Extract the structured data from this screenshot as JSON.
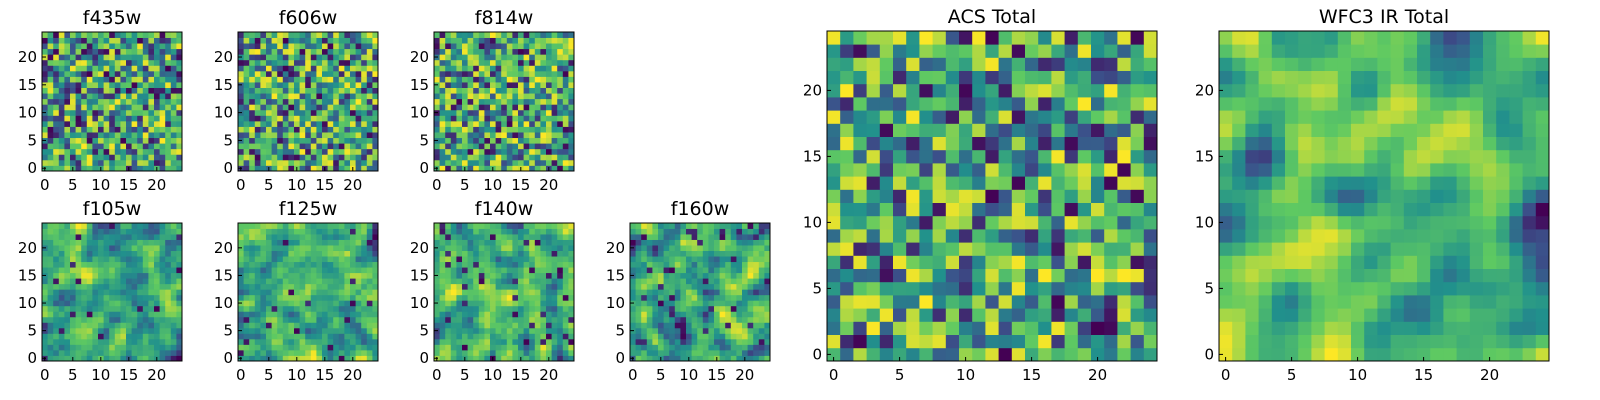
{
  "figure": {
    "description_note": "Grid of heatmap panels of 25x25 pixel images",
    "colormap": [
      "#440154",
      "#3b528b",
      "#21918c",
      "#5ec962",
      "#fde725"
    ]
  },
  "chart_data": [
    {
      "type": "heatmap",
      "title": "f435w",
      "grid_size": 25,
      "xlim": [
        0,
        24
      ],
      "ylim": [
        0,
        24
      ],
      "xticks": [
        0,
        5,
        10,
        15,
        20
      ],
      "yticks": [
        0,
        5,
        10,
        15,
        20
      ],
      "seed": 11,
      "smooth": 0,
      "low_bias": 0.05
    },
    {
      "type": "heatmap",
      "title": "f606w",
      "grid_size": 25,
      "xlim": [
        0,
        24
      ],
      "ylim": [
        0,
        24
      ],
      "xticks": [
        0,
        5,
        10,
        15,
        20
      ],
      "yticks": [
        0,
        5,
        10,
        15,
        20
      ],
      "seed": 23,
      "smooth": 0,
      "low_bias": 0.04
    },
    {
      "type": "heatmap",
      "title": "f814w",
      "grid_size": 25,
      "xlim": [
        0,
        24
      ],
      "ylim": [
        0,
        24
      ],
      "xticks": [
        0,
        5,
        10,
        15,
        20
      ],
      "yticks": [
        0,
        5,
        10,
        15,
        20
      ],
      "seed": 37,
      "smooth": 0,
      "low_bias": 0.03
    },
    {
      "type": "heatmap",
      "title": "f105w",
      "grid_size": 25,
      "xlim": [
        0,
        24
      ],
      "ylim": [
        0,
        24
      ],
      "xticks": [
        0,
        5,
        10,
        15,
        20
      ],
      "yticks": [
        0,
        5,
        10,
        15,
        20
      ],
      "seed": 41,
      "smooth": 1,
      "low_bias": 0.03
    },
    {
      "type": "heatmap",
      "title": "f125w",
      "grid_size": 25,
      "xlim": [
        0,
        24
      ],
      "ylim": [
        0,
        24
      ],
      "xticks": [
        0,
        5,
        10,
        15,
        20
      ],
      "yticks": [
        0,
        5,
        10,
        15,
        20
      ],
      "seed": 53,
      "smooth": 1,
      "low_bias": 0.02
    },
    {
      "type": "heatmap",
      "title": "f140w",
      "grid_size": 25,
      "xlim": [
        0,
        24
      ],
      "ylim": [
        0,
        24
      ],
      "xticks": [
        0,
        5,
        10,
        15,
        20
      ],
      "yticks": [
        0,
        5,
        10,
        15,
        20
      ],
      "seed": 67,
      "smooth": 1,
      "low_bias": 0.05
    },
    {
      "type": "heatmap",
      "title": "f160w",
      "grid_size": 25,
      "xlim": [
        0,
        24
      ],
      "ylim": [
        0,
        24
      ],
      "xticks": [
        0,
        5,
        10,
        15,
        20
      ],
      "yticks": [
        0,
        5,
        10,
        15,
        20
      ],
      "seed": 79,
      "smooth": 1,
      "low_bias": 0.05
    },
    {
      "type": "heatmap",
      "title": "ACS Total",
      "grid_size": 25,
      "xlim": [
        0,
        24
      ],
      "ylim": [
        0,
        24
      ],
      "xticks": [
        0,
        5,
        10,
        15,
        20
      ],
      "yticks": [
        0,
        5,
        10,
        15,
        20
      ],
      "seed": 97,
      "smooth": 0,
      "low_bias": 0.03
    },
    {
      "type": "heatmap",
      "title": "WFC3 IR Total",
      "grid_size": 25,
      "xlim": [
        0,
        24
      ],
      "ylim": [
        0,
        24
      ],
      "xticks": [
        0,
        5,
        10,
        15,
        20
      ],
      "yticks": [
        0,
        5,
        10,
        15,
        20
      ],
      "seed": 113,
      "smooth": 2,
      "low_bias": 0.0
    }
  ]
}
